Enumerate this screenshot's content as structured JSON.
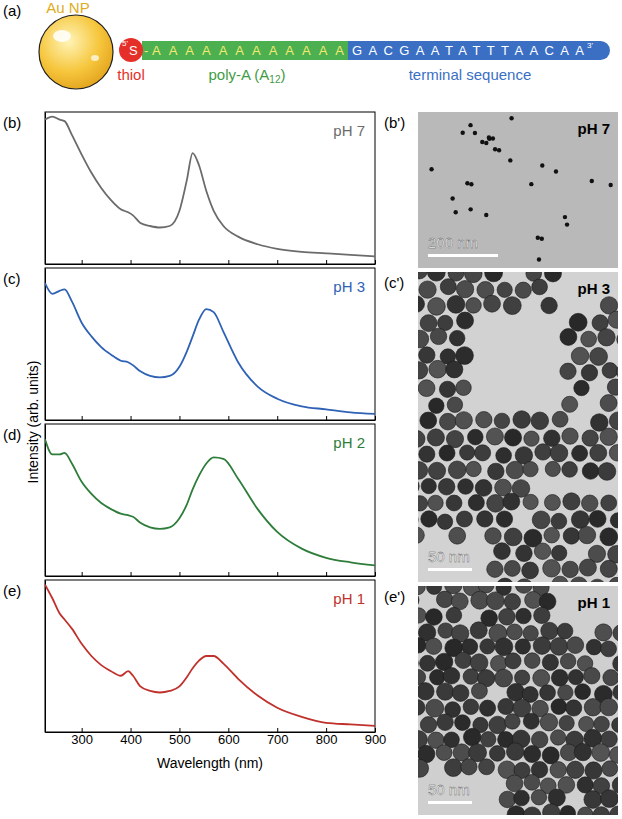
{
  "diagram": {
    "panel_label": "(a)",
    "particle_label": "Au NP",
    "five_prime": "5'",
    "thiol_atom": "S",
    "linker": "-",
    "thiol_label": "thiol",
    "poly_a": "AAAAAAAAAAAA",
    "terminal": "GACGAATATTTAACAA",
    "three_prime": "3'",
    "poly_a_label": "poly-A (A",
    "poly_a_subscript": "12",
    "poly_a_label_end": ")",
    "terminal_label": "terminal sequence"
  },
  "y_label": "Intensity (arb. units)",
  "chart_data": [
    {
      "type": "line",
      "panel_label": "(b)",
      "xlim": [
        225,
        900
      ],
      "ylim": [
        0,
        1
      ],
      "xticks": [
        300,
        400,
        500,
        600,
        700,
        800,
        900
      ],
      "yticks": [],
      "tick_labels": false,
      "x": [
        225,
        240,
        255,
        265,
        280,
        300,
        320,
        340,
        360,
        380,
        395,
        405,
        420,
        440,
        460,
        480,
        500,
        515,
        527,
        540,
        555,
        570,
        590,
        620,
        660,
        700,
        750,
        800,
        850,
        900
      ],
      "series": [
        {
          "name": "pH 7",
          "color": "#6b6b6b",
          "values": [
            0.95,
            0.97,
            0.95,
            0.94,
            0.85,
            0.72,
            0.6,
            0.5,
            0.42,
            0.36,
            0.34,
            0.32,
            0.27,
            0.25,
            0.24,
            0.25,
            0.35,
            0.55,
            0.73,
            0.65,
            0.48,
            0.35,
            0.25,
            0.18,
            0.13,
            0.1,
            0.08,
            0.07,
            0.06,
            0.05
          ]
        }
      ]
    },
    {
      "type": "line",
      "panel_label": "(c)",
      "xlim": [
        225,
        900
      ],
      "ylim": [
        0,
        1
      ],
      "xticks": [
        300,
        400,
        500,
        600,
        700,
        800,
        900
      ],
      "yticks": [],
      "tick_labels": false,
      "x": [
        225,
        240,
        255,
        265,
        280,
        300,
        320,
        340,
        360,
        380,
        395,
        405,
        420,
        440,
        460,
        480,
        500,
        515,
        527,
        540,
        555,
        570,
        590,
        620,
        660,
        700,
        750,
        800,
        850,
        900
      ],
      "series": [
        {
          "name": "pH 3",
          "color": "#2f62b5",
          "values": [
            0.9,
            0.83,
            0.85,
            0.86,
            0.78,
            0.64,
            0.55,
            0.48,
            0.43,
            0.39,
            0.38,
            0.36,
            0.32,
            0.29,
            0.28,
            0.29,
            0.35,
            0.45,
            0.55,
            0.66,
            0.73,
            0.71,
            0.58,
            0.38,
            0.22,
            0.14,
            0.09,
            0.07,
            0.05,
            0.04
          ]
        }
      ]
    },
    {
      "type": "line",
      "panel_label": "(d)",
      "xlim": [
        225,
        900
      ],
      "ylim": [
        0,
        1
      ],
      "xticks": [
        300,
        400,
        500,
        600,
        700,
        800,
        900
      ],
      "yticks": [],
      "tick_labels": false,
      "x": [
        225,
        240,
        255,
        265,
        280,
        300,
        320,
        340,
        360,
        380,
        395,
        405,
        420,
        440,
        460,
        480,
        500,
        515,
        527,
        540,
        555,
        570,
        590,
        620,
        660,
        700,
        750,
        800,
        850,
        900
      ],
      "series": [
        {
          "name": "pH 2",
          "color": "#2e7d3a",
          "values": [
            0.9,
            0.8,
            0.8,
            0.81,
            0.74,
            0.62,
            0.54,
            0.48,
            0.44,
            0.41,
            0.4,
            0.39,
            0.35,
            0.32,
            0.31,
            0.32,
            0.38,
            0.47,
            0.57,
            0.66,
            0.74,
            0.78,
            0.77,
            0.64,
            0.44,
            0.29,
            0.18,
            0.12,
            0.09,
            0.07
          ]
        }
      ]
    },
    {
      "type": "line",
      "panel_label": "(e)",
      "x_label": "Wavelength (nm)",
      "xlim": [
        225,
        900
      ],
      "ylim": [
        0,
        1
      ],
      "xticks": [
        300,
        400,
        500,
        600,
        700,
        800,
        900
      ],
      "yticks": [],
      "tick_labels": "x",
      "x": [
        225,
        240,
        255,
        265,
        280,
        300,
        320,
        340,
        360,
        380,
        395,
        405,
        420,
        440,
        460,
        480,
        500,
        515,
        527,
        540,
        555,
        570,
        590,
        620,
        660,
        700,
        750,
        800,
        850,
        900
      ],
      "series": [
        {
          "name": "pH 1",
          "color": "#c0312b",
          "values": [
            0.97,
            0.88,
            0.78,
            0.74,
            0.68,
            0.58,
            0.5,
            0.44,
            0.4,
            0.37,
            0.4,
            0.37,
            0.3,
            0.27,
            0.26,
            0.27,
            0.3,
            0.36,
            0.42,
            0.47,
            0.5,
            0.5,
            0.45,
            0.35,
            0.24,
            0.16,
            0.1,
            0.06,
            0.05,
            0.04
          ]
        }
      ]
    }
  ],
  "micrographs": [
    {
      "panel_label": "(b')",
      "label": "pH 7",
      "scale_bar": "200 nm"
    },
    {
      "panel_label": "(c')",
      "label": "pH 3",
      "scale_bar": "50 nm"
    },
    {
      "panel_label": "(e')",
      "label": "pH 1",
      "scale_bar": "50 nm"
    }
  ]
}
